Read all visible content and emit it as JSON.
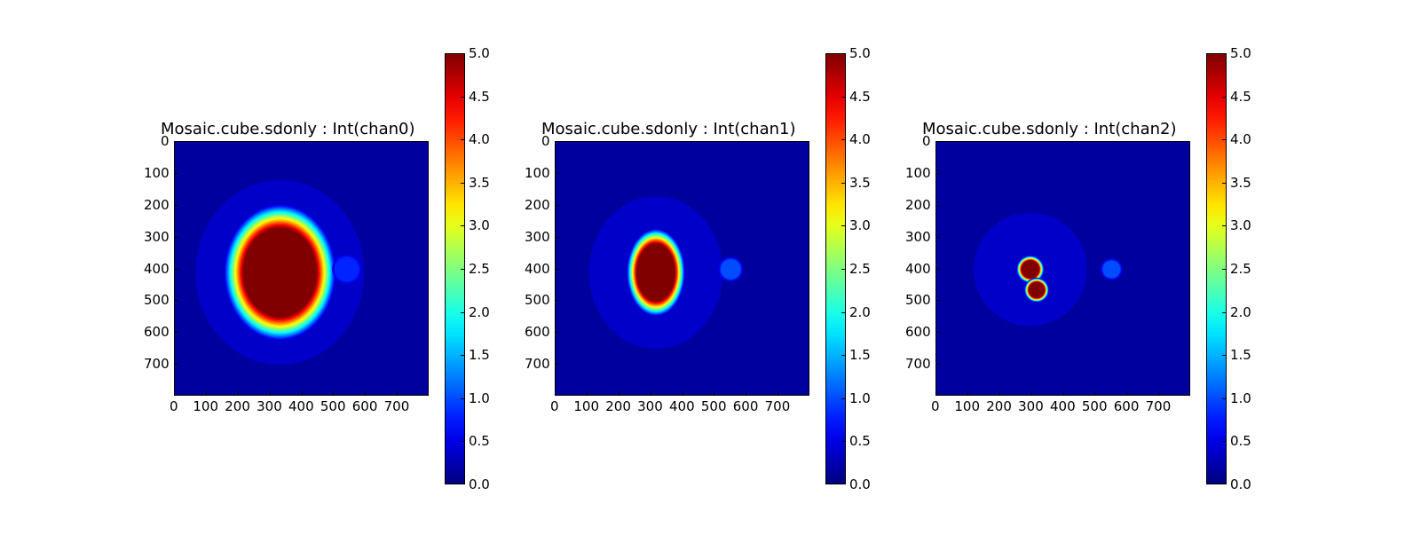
{
  "figure": {
    "background": "#ffffff"
  },
  "colormap": "jet",
  "chart_data": [
    {
      "type": "heatmap",
      "title": "Mosaic.cube.sdonly : Int(chan0)",
      "x_ticks": [
        "0",
        "100",
        "200",
        "300",
        "400",
        "500",
        "600",
        "700"
      ],
      "y_ticks": [
        "0",
        "100",
        "200",
        "300",
        "400",
        "500",
        "600",
        "700"
      ],
      "xlim": [
        0,
        800
      ],
      "ylim": [
        800,
        0
      ],
      "colorbar": {
        "range": [
          0.0,
          5.0
        ],
        "ticks": [
          "0.0",
          "0.5",
          "1.0",
          "1.5",
          "2.0",
          "2.5",
          "3.0",
          "3.5",
          "4.0",
          "4.5",
          "5.0"
        ]
      },
      "features": [
        {
          "kind": "saturated-core",
          "center": [
            330,
            410
          ],
          "radius_x": 115,
          "radius_y": 140,
          "peak": 5.0
        },
        {
          "kind": "faint-source",
          "center": [
            540,
            400
          ],
          "radius": 30,
          "peak": 0.8
        }
      ]
    },
    {
      "type": "heatmap",
      "title": "Mosaic.cube.sdonly : Int(chan1)",
      "x_ticks": [
        "0",
        "100",
        "200",
        "300",
        "400",
        "500",
        "600",
        "700"
      ],
      "y_ticks": [
        "0",
        "100",
        "200",
        "300",
        "400",
        "500",
        "600",
        "700"
      ],
      "xlim": [
        0,
        800
      ],
      "ylim": [
        800,
        0
      ],
      "colorbar": {
        "range": [
          0.0,
          5.0
        ],
        "ticks": [
          "0.0",
          "0.5",
          "1.0",
          "1.5",
          "2.0",
          "2.5",
          "3.0",
          "3.5",
          "4.0",
          "4.5",
          "5.0"
        ]
      },
      "features": [
        {
          "kind": "saturated-core",
          "center": [
            315,
            410
          ],
          "radius_x": 60,
          "radius_y": 90,
          "peak": 5.0
        },
        {
          "kind": "faint-source",
          "center": [
            550,
            400
          ],
          "radius": 25,
          "peak": 1.0
        }
      ]
    },
    {
      "type": "heatmap",
      "title": "Mosaic.cube.sdonly : Int(chan2)",
      "x_ticks": [
        "0",
        "100",
        "200",
        "300",
        "400",
        "500",
        "600",
        "700"
      ],
      "y_ticks": [
        "0",
        "100",
        "200",
        "300",
        "400",
        "500",
        "600",
        "700"
      ],
      "xlim": [
        0,
        800
      ],
      "ylim": [
        800,
        0
      ],
      "colorbar": {
        "range": [
          0.0,
          5.0
        ],
        "ticks": [
          "0.0",
          "0.5",
          "1.0",
          "1.5",
          "2.0",
          "2.5",
          "3.0",
          "3.5",
          "4.0",
          "4.5",
          "5.0"
        ]
      },
      "features": [
        {
          "kind": "compact-source",
          "center": [
            295,
            400
          ],
          "radius": 28,
          "peak": 5.0
        },
        {
          "kind": "compact-source",
          "center": [
            315,
            465
          ],
          "radius": 25,
          "peak": 5.0
        },
        {
          "kind": "faint-source",
          "center": [
            550,
            400
          ],
          "radius": 22,
          "peak": 1.0
        }
      ]
    }
  ]
}
